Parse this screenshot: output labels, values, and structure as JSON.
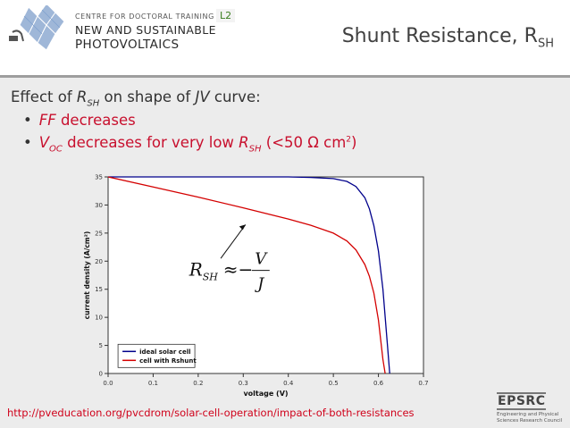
{
  "header": {
    "logo_line1": "CENTRE FOR DOCTORAL TRAINING",
    "logo_line2": "NEW AND SUSTAINABLE",
    "logo_line3": "PHOTOVOLTAICS",
    "lecture_tag": "L2",
    "title_main": "Shunt Resistance, R",
    "title_sub": "SH"
  },
  "body": {
    "lead_pre": "Effect of ",
    "lead_r": "R",
    "lead_sub": "SH",
    "lead_mid": " on shape of ",
    "lead_jv": "JV",
    "lead_post": " curve:",
    "bullet1_ff": "FF",
    "bullet1_text": " decreases",
    "bullet2_v": "V",
    "bullet2_sub": "OC",
    "bullet2_mid": " decreases for very low ",
    "bullet2_r": "R",
    "bullet2_rsub": "SH",
    "bullet2_post_a": " (<50 Ω cm",
    "bullet2_sup": "2",
    "bullet2_post_b": ")"
  },
  "footer": {
    "url": "http://pveducation.org/pvcdrom/solar-cell-operation/impact-of-both-resistances",
    "epsrc_title": "EPSRC",
    "epsrc_sub": "Engineering and Physical Sciences Research Council"
  },
  "chart_data": {
    "type": "line",
    "xlabel": "voltage (V)",
    "ylabel": "current density (A/cm²)",
    "xlim": [
      0.0,
      0.7
    ],
    "ylim": [
      0,
      35
    ],
    "xticks": [
      "0.0",
      "0.1",
      "0.2",
      "0.3",
      "0.4",
      "0.5",
      "0.6",
      "0.7"
    ],
    "yticks": [
      "0",
      "5",
      "10",
      "15",
      "20",
      "25",
      "30",
      "35"
    ],
    "legend_position": "bottom-left",
    "formula": {
      "lhs": "R",
      "lhs_sub": "SH",
      "op": "≈−",
      "num": "V",
      "den": "J"
    },
    "series": [
      {
        "name": "ideal solar cell",
        "color": "#00008b",
        "x": [
          0.0,
          0.1,
          0.2,
          0.3,
          0.4,
          0.45,
          0.5,
          0.53,
          0.55,
          0.57,
          0.58,
          0.59,
          0.6,
          0.61,
          0.62,
          0.625
        ],
        "y": [
          35.0,
          35.0,
          35.0,
          35.0,
          35.0,
          34.9,
          34.7,
          34.2,
          33.3,
          31.3,
          29.3,
          26.3,
          21.8,
          15.0,
          5.0,
          0.0
        ]
      },
      {
        "name": "cell with Rshunt",
        "color": "#d40000",
        "x": [
          0.0,
          0.1,
          0.2,
          0.3,
          0.4,
          0.45,
          0.5,
          0.53,
          0.55,
          0.57,
          0.58,
          0.59,
          0.6,
          0.61,
          0.615
        ],
        "y": [
          35.0,
          33.2,
          31.4,
          29.5,
          27.5,
          26.4,
          25.0,
          23.6,
          22.0,
          19.4,
          17.3,
          14.3,
          9.5,
          2.5,
          0.0
        ]
      }
    ]
  }
}
